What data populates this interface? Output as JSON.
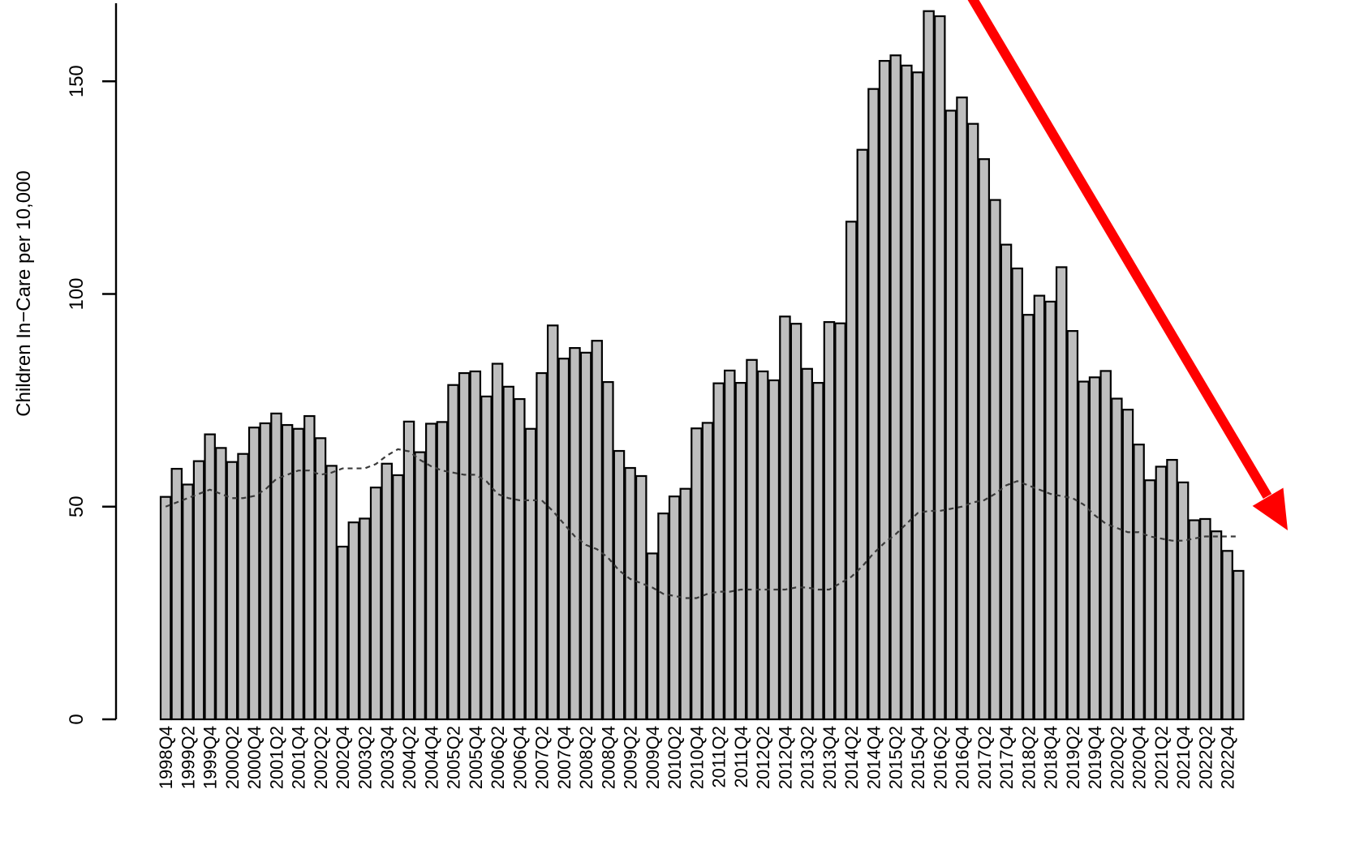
{
  "chart_data": {
    "type": "bar",
    "title": "",
    "xlabel": "",
    "ylabel": "Children In−Care per 10,000",
    "ylim": [
      0,
      168
    ],
    "yticks": [
      0,
      50,
      100,
      150
    ],
    "grid": false,
    "categories": [
      "1998Q4",
      "1999Q1",
      "1999Q2",
      "1999Q3",
      "1999Q4",
      "2000Q1",
      "2000Q2",
      "2000Q3",
      "2000Q4",
      "2001Q1",
      "2001Q2",
      "2001Q3",
      "2001Q4",
      "2002Q1",
      "2002Q2",
      "2002Q3",
      "2002Q4",
      "2003Q1",
      "2003Q2",
      "2003Q3",
      "2003Q4",
      "2004Q1",
      "2004Q2",
      "2004Q3",
      "2004Q4",
      "2005Q1",
      "2005Q2",
      "2005Q3",
      "2005Q4",
      "2006Q1",
      "2006Q2",
      "2006Q3",
      "2006Q4",
      "2007Q1",
      "2007Q2",
      "2007Q3",
      "2007Q4",
      "2008Q1",
      "2008Q2",
      "2008Q3",
      "2008Q4",
      "2009Q1",
      "2009Q2",
      "2009Q3",
      "2009Q4",
      "2010Q1",
      "2010Q2",
      "2010Q3",
      "2010Q4",
      "2011Q1",
      "2011Q2",
      "2011Q3",
      "2011Q4",
      "2012Q1",
      "2012Q2",
      "2012Q3",
      "2012Q4",
      "2013Q1",
      "2013Q2",
      "2013Q3",
      "2013Q4",
      "2014Q1",
      "2014Q2",
      "2014Q3",
      "2014Q4",
      "2015Q1",
      "2015Q2",
      "2015Q3",
      "2015Q4",
      "2016Q1",
      "2016Q2",
      "2016Q3",
      "2016Q4",
      "2017Q1",
      "2017Q2",
      "2017Q3",
      "2017Q4",
      "2018Q1",
      "2018Q2",
      "2018Q3",
      "2018Q4",
      "2019Q1",
      "2019Q2",
      "2019Q3",
      "2019Q4",
      "2020Q1",
      "2020Q2",
      "2020Q3",
      "2020Q4",
      "2021Q1",
      "2021Q2",
      "2021Q3",
      "2021Q4",
      "2022Q1",
      "2022Q2",
      "2022Q3",
      "2022Q4",
      "2023Q1"
    ],
    "xtick_labels": [
      "1998Q4",
      "1999Q2",
      "1999Q4",
      "2000Q2",
      "2000Q4",
      "2001Q2",
      "2001Q4",
      "2002Q2",
      "2002Q4",
      "2003Q2",
      "2003Q4",
      "2004Q2",
      "2004Q4",
      "2005Q2",
      "2005Q4",
      "2006Q2",
      "2006Q4",
      "2007Q2",
      "2007Q4",
      "2008Q2",
      "2008Q4",
      "2009Q2",
      "2009Q4",
      "2010Q2",
      "2010Q4",
      "2011Q2",
      "2011Q4",
      "2012Q2",
      "2012Q4",
      "2013Q2",
      "2013Q4",
      "2014Q2",
      "2014Q4",
      "2015Q2",
      "2015Q4",
      "2016Q2",
      "2016Q4",
      "2017Q2",
      "2017Q4",
      "2018Q2",
      "2018Q4",
      "2019Q2",
      "2019Q4",
      "2020Q2",
      "2020Q4",
      "2021Q2",
      "2021Q4",
      "2022Q2",
      "2022Q4"
    ],
    "series": [
      {
        "values": [
          52.3,
          58.9,
          55.2,
          60.7,
          67.0,
          63.8,
          60.5,
          62.4,
          68.6,
          69.6,
          71.9,
          69.2,
          68.3,
          71.3,
          66.1,
          59.6,
          40.6,
          46.3,
          47.2,
          54.5,
          60.1,
          57.4,
          70.0,
          62.8,
          69.5,
          69.9,
          78.6,
          81.4,
          81.8,
          75.9,
          83.6,
          78.2,
          75.3,
          68.3,
          81.4,
          92.6,
          84.8,
          87.3,
          86.2,
          89.0,
          79.3,
          63.1,
          59.1,
          57.2,
          39.0,
          48.4,
          52.4,
          54.2,
          68.4,
          69.7,
          79.0,
          82.0,
          79.1,
          84.5,
          81.8,
          79.7,
          94.7,
          93.0,
          82.4,
          79.1,
          93.4,
          93.1,
          117.0,
          133.9,
          148.2,
          154.8,
          156.1,
          153.7,
          152.1,
          166.5,
          165.3,
          143.1,
          146.2,
          140.0,
          131.7,
          122.1,
          111.6,
          106.0,
          95.1,
          99.6,
          98.2,
          106.3,
          91.3,
          79.4,
          80.4,
          81.9,
          75.4,
          72.8,
          64.6,
          56.2,
          59.4,
          61.0,
          55.7,
          46.8,
          47.1,
          44.2,
          39.6,
          34.9
        ]
      },
      {
        "style": "dashed",
        "values": [
          50,
          51,
          52,
          53,
          54,
          53,
          52,
          52,
          52.5,
          54,
          56.5,
          57.5,
          58.5,
          58.5,
          57.5,
          58,
          59,
          59,
          59,
          60,
          62,
          63.5,
          63,
          61,
          59.5,
          58.5,
          58,
          57.5,
          57.5,
          56,
          53,
          52,
          51.5,
          51.5,
          51.5,
          49,
          46,
          43,
          41,
          40,
          38,
          35,
          33,
          32,
          31,
          29.5,
          29,
          28.5,
          28.5,
          29.5,
          30,
          30,
          30.5,
          30.5,
          30.5,
          30.5,
          30.5,
          31,
          31,
          30.5,
          30.5,
          32,
          33.5,
          36,
          39,
          41.5,
          43.5,
          46,
          48.5,
          49,
          49,
          49.5,
          50,
          51,
          51.5,
          53,
          55,
          56,
          55,
          54,
          53,
          52.5,
          52,
          50.5,
          48,
          46,
          45,
          44,
          44,
          43,
          42.5,
          42,
          42,
          42.5,
          43,
          43,
          43,
          43
        ]
      }
    ],
    "annotations": [
      {
        "type": "arrow",
        "color": "#ff0000",
        "direction": "down-right"
      }
    ]
  }
}
